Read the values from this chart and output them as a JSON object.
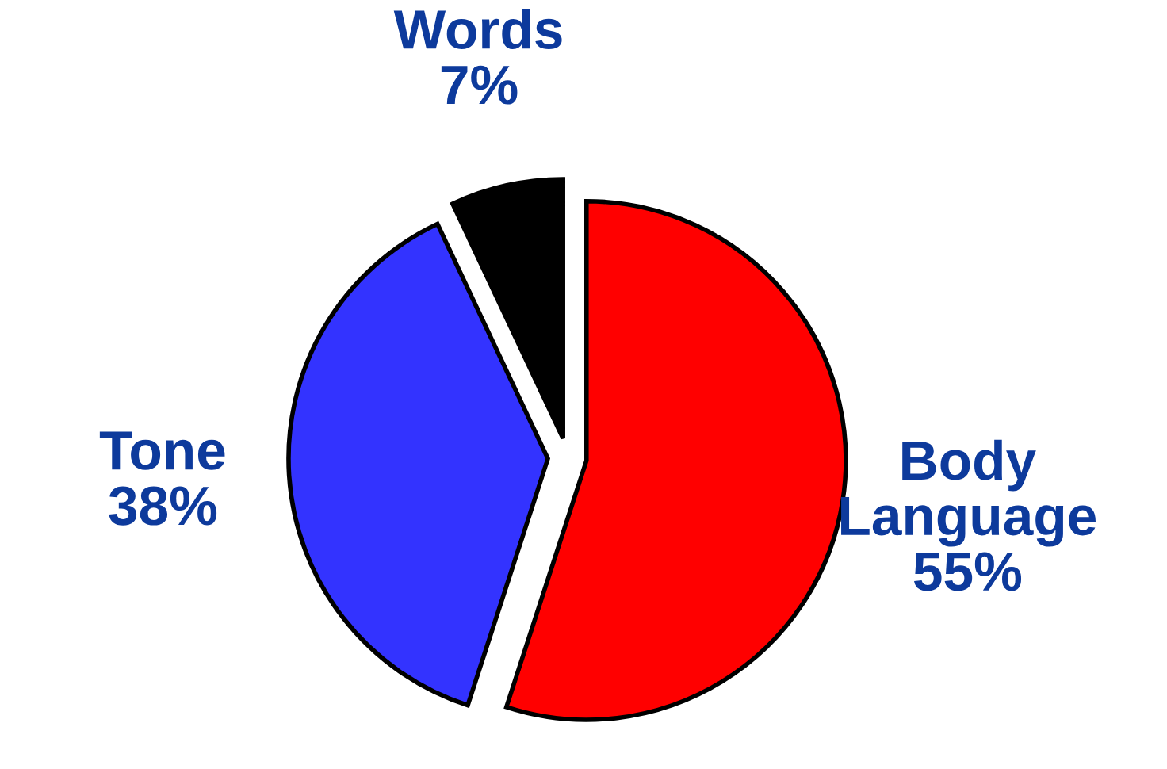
{
  "chart_data": {
    "type": "pie",
    "categories": [
      "Body Language",
      "Tone",
      "Words"
    ],
    "values": [
      55,
      38,
      7
    ],
    "value_labels": [
      "55%",
      "38%",
      "7%"
    ],
    "colors": [
      "#ff0000",
      "#3333ff",
      "#000000"
    ]
  }
}
